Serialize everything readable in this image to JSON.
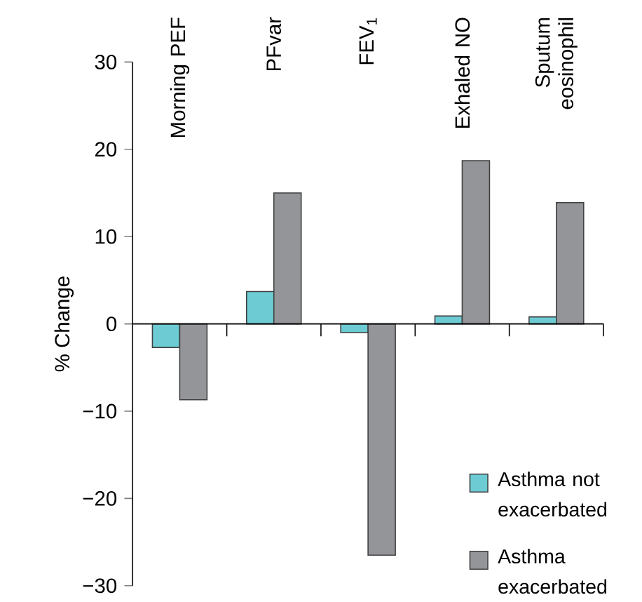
{
  "chart_data": {
    "type": "bar",
    "ylabel": "% Change",
    "categories": [
      "Morning PEF",
      "PFvar",
      "FEV$_{1}$",
      "Exhaled NO",
      "Sputum eosinophil"
    ],
    "series": [
      {
        "name": "Asthma not exacerbated",
        "color": "#6ccbd3",
        "values": [
          -2.7,
          3.7,
          -1.0,
          0.9,
          0.8
        ]
      },
      {
        "name": "Asthma exacerbated",
        "color": "#939598",
        "values": [
          -8.7,
          15.0,
          -26.5,
          18.7,
          13.9
        ]
      }
    ],
    "ylim": [
      -30,
      30
    ],
    "yticks": [
      {
        "value": -30,
        "label": "−30"
      },
      {
        "value": -20,
        "label": "−20"
      },
      {
        "value": -10,
        "label": "−10"
      },
      0,
      10,
      20,
      30
    ],
    "legend": "bottom right"
  }
}
